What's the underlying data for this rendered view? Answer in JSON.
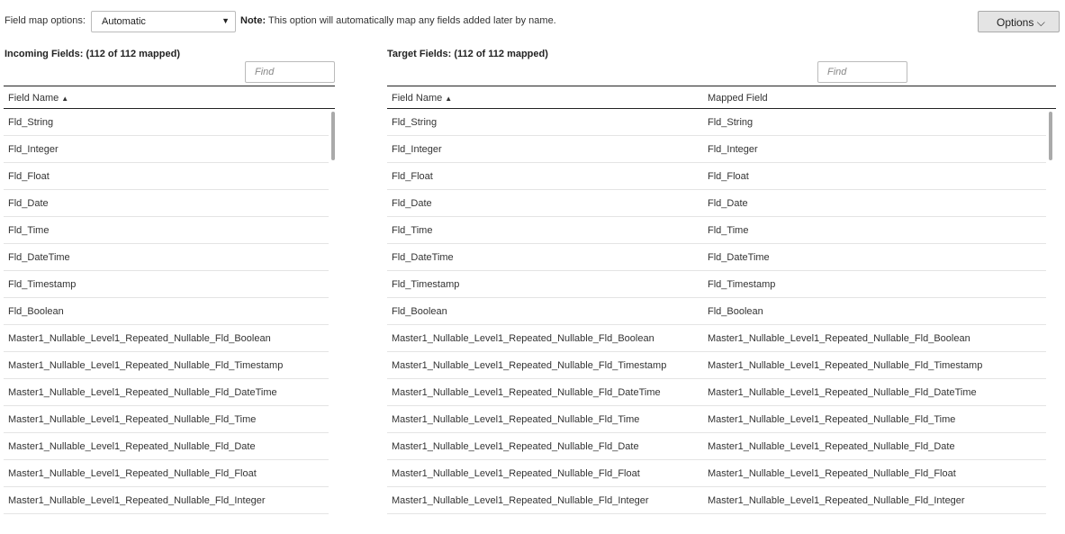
{
  "top": {
    "field_map_label": "Field map options:",
    "field_map_value": "Automatic",
    "note_bold": "Note:",
    "note_text": "This option will automatically map any fields added later by name.",
    "options_label": "Options"
  },
  "incoming": {
    "title": "Incoming Fields: (112 of 112 mapped)",
    "find_placeholder": "Find",
    "col_field_name": "Field Name"
  },
  "target": {
    "title": "Target Fields: (112 of 112 mapped)",
    "find_placeholder": "Find",
    "col_field_name": "Field Name",
    "col_mapped_field": "Mapped Field"
  },
  "rows": [
    "Fld_String",
    "Fld_Integer",
    "Fld_Float",
    "Fld_Date",
    "Fld_Time",
    "Fld_DateTime",
    "Fld_Timestamp",
    "Fld_Boolean",
    "Master1_Nullable_Level1_Repeated_Nullable_Fld_Boolean",
    "Master1_Nullable_Level1_Repeated_Nullable_Fld_Timestamp",
    "Master1_Nullable_Level1_Repeated_Nullable_Fld_DateTime",
    "Master1_Nullable_Level1_Repeated_Nullable_Fld_Time",
    "Master1_Nullable_Level1_Repeated_Nullable_Fld_Date",
    "Master1_Nullable_Level1_Repeated_Nullable_Fld_Float",
    "Master1_Nullable_Level1_Repeated_Nullable_Fld_Integer"
  ]
}
